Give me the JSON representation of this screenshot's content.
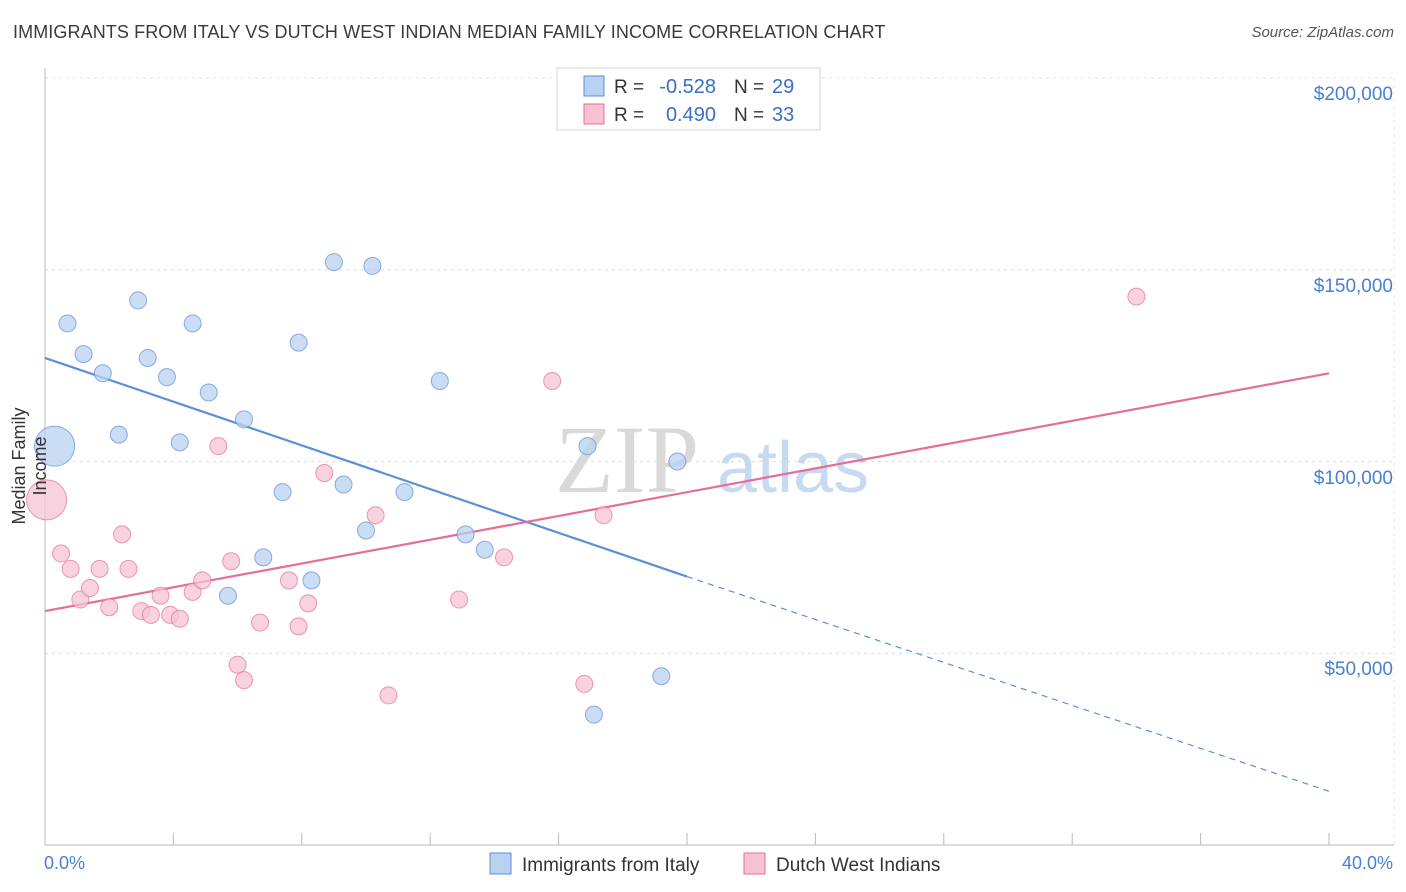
{
  "chart_data": {
    "type": "scatter",
    "title": "IMMIGRANTS FROM ITALY VS DUTCH WEST INDIAN MEDIAN FAMILY INCOME CORRELATION CHART",
    "source": "Source: ZipAtlas.com",
    "xlabel": "",
    "ylabel": "Median Family Income",
    "xlim": [
      0,
      40
    ],
    "ylim": [
      0,
      200000
    ],
    "x_tick_labels": [
      "0.0%",
      "40.0%"
    ],
    "y_tick_labels": [
      "$50,000",
      "$100,000",
      "$150,000",
      "$200,000"
    ],
    "y_ticks": [
      50000,
      100000,
      150000,
      200000
    ],
    "watermark": "ZIPatlas",
    "legend": {
      "position": "top-center",
      "rows": [
        {
          "r_label": "R =",
          "r_value": "-0.528",
          "n_label": "N =",
          "n_value": "29"
        },
        {
          "r_label": "R =",
          "r_value": "0.490",
          "n_label": "N =",
          "n_value": "33"
        }
      ]
    },
    "series": [
      {
        "name": "Immigrants from Italy",
        "color": "#5b8fd6",
        "fill": "#b9d1f2",
        "trend": {
          "x0": 0,
          "y0": 127000,
          "x1": 20,
          "y1": 70000,
          "dashed_to_x": 40,
          "dashed_to_y": 14000
        },
        "points": [
          {
            "x": 0.3,
            "y": 104000,
            "big": true
          },
          {
            "x": 0.7,
            "y": 136000
          },
          {
            "x": 1.2,
            "y": 128000
          },
          {
            "x": 1.8,
            "y": 123000
          },
          {
            "x": 2.3,
            "y": 107000
          },
          {
            "x": 2.9,
            "y": 142000
          },
          {
            "x": 3.2,
            "y": 127000
          },
          {
            "x": 3.8,
            "y": 122000
          },
          {
            "x": 4.2,
            "y": 105000
          },
          {
            "x": 4.6,
            "y": 136000
          },
          {
            "x": 5.1,
            "y": 118000
          },
          {
            "x": 5.7,
            "y": 65000
          },
          {
            "x": 6.2,
            "y": 111000
          },
          {
            "x": 6.8,
            "y": 75000
          },
          {
            "x": 7.4,
            "y": 92000
          },
          {
            "x": 7.9,
            "y": 131000
          },
          {
            "x": 8.3,
            "y": 69000
          },
          {
            "x": 9.0,
            "y": 152000
          },
          {
            "x": 9.3,
            "y": 94000
          },
          {
            "x": 10.0,
            "y": 82000
          },
          {
            "x": 10.2,
            "y": 151000
          },
          {
            "x": 11.2,
            "y": 92000
          },
          {
            "x": 12.3,
            "y": 121000
          },
          {
            "x": 13.1,
            "y": 81000
          },
          {
            "x": 13.7,
            "y": 77000
          },
          {
            "x": 16.9,
            "y": 104000
          },
          {
            "x": 17.1,
            "y": 34000
          },
          {
            "x": 19.2,
            "y": 44000
          },
          {
            "x": 19.7,
            "y": 100000
          }
        ]
      },
      {
        "name": "Dutch West Indians",
        "color": "#e36f98",
        "fill": "#f7c3d4",
        "trend": {
          "x0": 0,
          "y0": 61000,
          "x1": 40,
          "y1": 123000
        },
        "points": [
          {
            "x": 0.05,
            "y": 90000,
            "big": true
          },
          {
            "x": 0.5,
            "y": 76000
          },
          {
            "x": 0.8,
            "y": 72000
          },
          {
            "x": 1.1,
            "y": 64000
          },
          {
            "x": 1.4,
            "y": 67000
          },
          {
            "x": 1.7,
            "y": 72000
          },
          {
            "x": 2.0,
            "y": 62000
          },
          {
            "x": 2.4,
            "y": 81000
          },
          {
            "x": 2.6,
            "y": 72000
          },
          {
            "x": 3.0,
            "y": 61000
          },
          {
            "x": 3.3,
            "y": 60000
          },
          {
            "x": 3.6,
            "y": 65000
          },
          {
            "x": 3.9,
            "y": 60000
          },
          {
            "x": 4.2,
            "y": 59000
          },
          {
            "x": 4.6,
            "y": 66000
          },
          {
            "x": 4.9,
            "y": 69000
          },
          {
            "x": 5.4,
            "y": 104000
          },
          {
            "x": 5.8,
            "y": 74000
          },
          {
            "x": 6.0,
            "y": 47000
          },
          {
            "x": 6.2,
            "y": 43000
          },
          {
            "x": 6.7,
            "y": 58000
          },
          {
            "x": 7.6,
            "y": 69000
          },
          {
            "x": 7.9,
            "y": 57000
          },
          {
            "x": 8.2,
            "y": 63000
          },
          {
            "x": 8.7,
            "y": 97000
          },
          {
            "x": 10.3,
            "y": 86000
          },
          {
            "x": 10.7,
            "y": 39000
          },
          {
            "x": 12.9,
            "y": 64000
          },
          {
            "x": 14.3,
            "y": 75000
          },
          {
            "x": 15.8,
            "y": 121000
          },
          {
            "x": 16.8,
            "y": 42000
          },
          {
            "x": 17.4,
            "y": 86000
          },
          {
            "x": 34.0,
            "y": 143000
          }
        ]
      }
    ]
  }
}
